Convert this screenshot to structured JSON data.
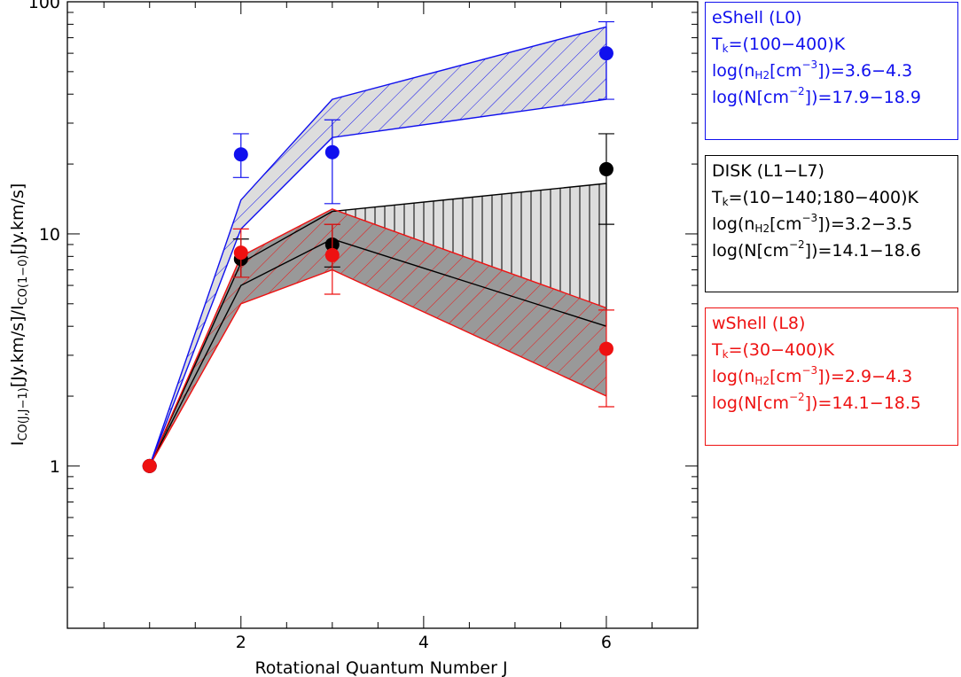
{
  "chart_data": {
    "type": "line",
    "xlabel": "Rotational Quantum Number J",
    "ylabel": {
      "prefix": "I",
      "sub1": "CO(J,J−1)",
      "mid": "[Jy.km/s]/I",
      "sub2": "CO(1−0)",
      "suffix": "[Jy.km/s]"
    },
    "xlim": [
      0.1,
      7
    ],
    "ylim": [
      0.2,
      100
    ],
    "y_scale": "log",
    "x_ticks": [
      2,
      4,
      6
    ],
    "y_ticks": [
      1,
      10,
      100
    ],
    "grid": false,
    "legend_position": "right",
    "series": [
      {
        "key": "eshell",
        "color": "#1010ee",
        "points": [
          {
            "x": 1,
            "y": 1.0,
            "yerr_low": 1.0,
            "yerr_high": 1.0
          },
          {
            "x": 2,
            "y": 22,
            "yerr_low": 17.5,
            "yerr_high": 27
          },
          {
            "x": 3,
            "y": 22.5,
            "yerr_low": 13.5,
            "yerr_high": 31
          },
          {
            "x": 6,
            "y": 60,
            "yerr_low": 38,
            "yerr_high": 82
          }
        ],
        "model_band": {
          "x": [
            1,
            2,
            3,
            6
          ],
          "upper": [
            1.0,
            14,
            38,
            78
          ],
          "lower": [
            1.0,
            10.5,
            26,
            38
          ]
        }
      },
      {
        "key": "disk",
        "color": "#000000",
        "points": [
          {
            "x": 1,
            "y": 1.0,
            "yerr_low": 1.0,
            "yerr_high": 1.0
          },
          {
            "x": 2,
            "y": 7.8,
            "yerr_low": 6.5,
            "yerr_high": 9.5
          },
          {
            "x": 3,
            "y": 9.0,
            "yerr_low": 7.2,
            "yerr_high": 11
          },
          {
            "x": 6,
            "y": 19,
            "yerr_low": 11,
            "yerr_high": 27
          }
        ],
        "model_band": {
          "x": [
            1,
            2,
            3,
            6
          ],
          "upper": [
            1.0,
            7.5,
            12.5,
            16.5
          ],
          "lower": [
            1.0,
            6.0,
            9.5,
            4.0
          ]
        }
      },
      {
        "key": "wshell",
        "color": "#ee1111",
        "points": [
          {
            "x": 1,
            "y": 1.0,
            "yerr_low": 1.0,
            "yerr_high": 1.0
          },
          {
            "x": 2,
            "y": 8.3,
            "yerr_low": 6.5,
            "yerr_high": 10.5
          },
          {
            "x": 3,
            "y": 8.1,
            "yerr_low": 5.5,
            "yerr_high": 11
          },
          {
            "x": 6,
            "y": 3.2,
            "yerr_low": 1.8,
            "yerr_high": 4.7
          }
        ],
        "model_band": {
          "x": [
            1,
            2,
            3,
            6
          ],
          "upper": [
            1.0,
            8.0,
            12.8,
            4.8
          ],
          "lower": [
            1.0,
            5.0,
            7.0,
            2.0
          ]
        }
      }
    ]
  },
  "legend": {
    "eshell": {
      "name": "eShell (L0)",
      "tk": "=(100−400)K",
      "nh2": "])=3.6−4.3",
      "n": "])=17.9−18.9"
    },
    "disk": {
      "name": "DISK (L1−L7)",
      "tk": "=(10−140;180−400)K",
      "nh2": "])=3.2−3.5",
      "n": "])=14.1−18.6"
    },
    "wshell": {
      "name": "wShell (L8)",
      "tk": "=(30−400)K",
      "nh2": "])=2.9−4.3",
      "n": "])=14.1−18.5"
    },
    "parts": {
      "t": "T",
      "k": "k",
      "log_n": "log(n",
      "h2": "H2",
      "cm": "[cm",
      "m3": "−3",
      "log_N": "log(N[cm",
      "m2": "−2",
      "close": "])"
    }
  },
  "colors": {
    "blue": "#1010ee",
    "black": "#000000",
    "red": "#ee1111",
    "band_gray": "#dddddd",
    "dark_band": "#999999"
  }
}
